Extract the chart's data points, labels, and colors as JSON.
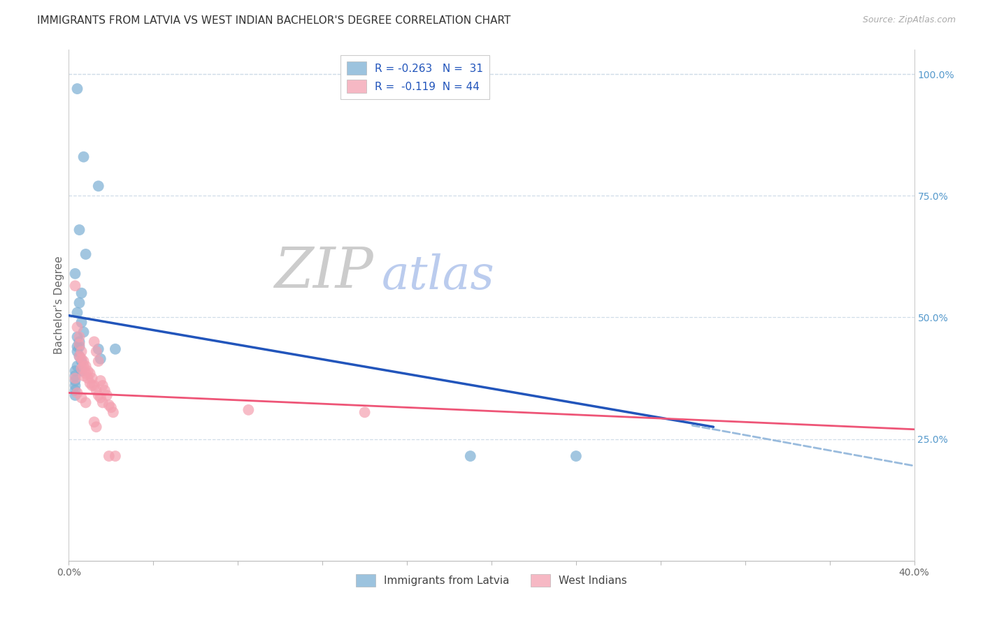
{
  "title": "IMMIGRANTS FROM LATVIA VS WEST INDIAN BACHELOR'S DEGREE CORRELATION CHART",
  "source": "Source: ZipAtlas.com",
  "ylabel": "Bachelor's Degree",
  "right_yticks": [
    "100.0%",
    "75.0%",
    "50.0%",
    "25.0%"
  ],
  "right_ytick_vals": [
    1.0,
    0.75,
    0.5,
    0.25
  ],
  "legend_line1": "R = -0.263   N =  31",
  "legend_line2": "R =  -0.119  N = 44",
  "xlim": [
    0.0,
    0.4
  ],
  "ylim": [
    0.0,
    1.05
  ],
  "blue_color": "#7bafd4",
  "pink_color": "#f4a0b0",
  "blue_line_color": "#2255bb",
  "pink_line_color": "#ee5577",
  "dashed_line_color": "#99bbdd",
  "background_color": "#ffffff",
  "grid_color": "#d0dde8",
  "title_color": "#333333",
  "blue_points_x": [
    0.004,
    0.007,
    0.014,
    0.005,
    0.008,
    0.003,
    0.006,
    0.005,
    0.004,
    0.006,
    0.007,
    0.004,
    0.005,
    0.004,
    0.005,
    0.004,
    0.005,
    0.006,
    0.003,
    0.006,
    0.004,
    0.003,
    0.014,
    0.015,
    0.022,
    0.19,
    0.24,
    0.003,
    0.003,
    0.003,
    0.003
  ],
  "blue_points_y": [
    0.97,
    0.83,
    0.77,
    0.68,
    0.63,
    0.59,
    0.55,
    0.53,
    0.51,
    0.49,
    0.47,
    0.46,
    0.45,
    0.44,
    0.44,
    0.43,
    0.42,
    0.41,
    0.39,
    0.39,
    0.4,
    0.38,
    0.435,
    0.415,
    0.435,
    0.215,
    0.215,
    0.37,
    0.36,
    0.35,
    0.34
  ],
  "pink_points_x": [
    0.003,
    0.004,
    0.005,
    0.006,
    0.005,
    0.007,
    0.008,
    0.009,
    0.006,
    0.007,
    0.008,
    0.009,
    0.01,
    0.011,
    0.012,
    0.013,
    0.014,
    0.01,
    0.011,
    0.012,
    0.013,
    0.014,
    0.015,
    0.016,
    0.005,
    0.006,
    0.007,
    0.015,
    0.016,
    0.017,
    0.018,
    0.019,
    0.02,
    0.021,
    0.085,
    0.14,
    0.003,
    0.004,
    0.006,
    0.008,
    0.012,
    0.013,
    0.019,
    0.022
  ],
  "pink_points_y": [
    0.565,
    0.48,
    0.46,
    0.43,
    0.445,
    0.41,
    0.4,
    0.39,
    0.415,
    0.4,
    0.385,
    0.375,
    0.365,
    0.36,
    0.45,
    0.43,
    0.41,
    0.385,
    0.375,
    0.36,
    0.35,
    0.34,
    0.335,
    0.325,
    0.42,
    0.395,
    0.38,
    0.37,
    0.36,
    0.35,
    0.34,
    0.32,
    0.315,
    0.305,
    0.31,
    0.305,
    0.375,
    0.345,
    0.335,
    0.325,
    0.285,
    0.275,
    0.215,
    0.215
  ],
  "blue_line_x0": 0.0,
  "blue_line_x1": 0.305,
  "blue_line_y0": 0.504,
  "blue_line_y1": 0.275,
  "pink_line_x0": 0.0,
  "pink_line_x1": 0.4,
  "pink_line_y0": 0.345,
  "pink_line_y1": 0.27,
  "dash_line_x0": 0.295,
  "dash_line_x1": 0.4,
  "dash_line_y0": 0.278,
  "dash_line_y1": 0.195,
  "title_fontsize": 11,
  "source_fontsize": 9,
  "tick_fontsize": 10
}
